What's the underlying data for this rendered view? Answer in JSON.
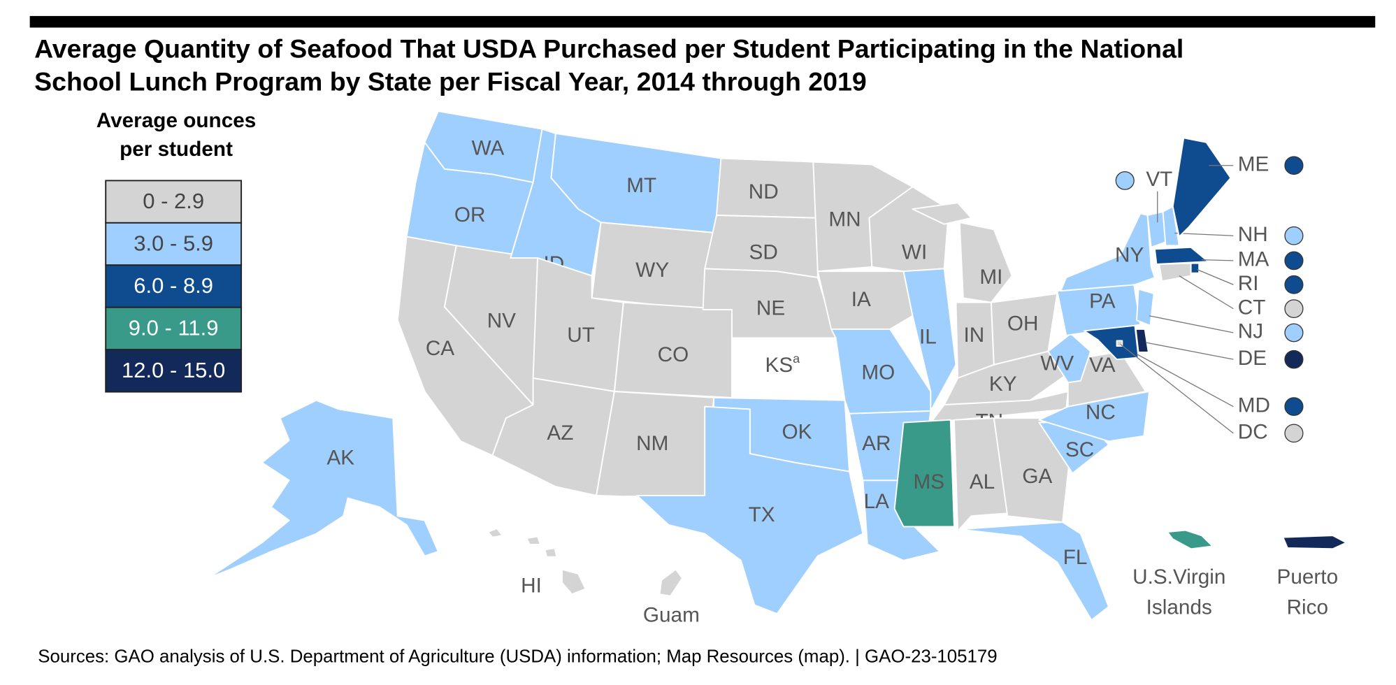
{
  "header": {
    "title_lines": [
      "Average Quantity of Seafood That USDA Purchased per Student Participating in the National",
      "School Lunch Program by State per Fiscal Year, 2014 through 2019"
    ]
  },
  "legend": {
    "title_lines": [
      "Average ounces",
      "per student"
    ],
    "items": [
      {
        "label": "0 - 2.9",
        "color": "#d4d4d4",
        "text_color": "#444444"
      },
      {
        "label": "3.0 - 5.9",
        "color": "#9fcfff",
        "text_color": "#444444"
      },
      {
        "label": "6.0 - 8.9",
        "color": "#0f4c8f",
        "text_color": "#ffffff"
      },
      {
        "label": "9.0 - 11.9",
        "color": "#3a9a8a",
        "text_color": "#ffffff"
      },
      {
        "label": "12.0 - 15.0",
        "color": "#12295a",
        "text_color": "#ffffff"
      }
    ]
  },
  "regions": [
    {
      "label": "WA",
      "color": "#9fcfff"
    },
    {
      "label": "OR",
      "color": "#9fcfff"
    },
    {
      "label": "CA",
      "color": "#d4d4d4"
    },
    {
      "label": "NV",
      "color": "#d4d4d4"
    },
    {
      "label": "ID",
      "color": "#9fcfff"
    },
    {
      "label": "MT",
      "color": "#9fcfff"
    },
    {
      "label": "WY",
      "color": "#d4d4d4"
    },
    {
      "label": "UT",
      "color": "#d4d4d4"
    },
    {
      "label": "CO",
      "color": "#d4d4d4"
    },
    {
      "label": "AZ",
      "color": "#d4d4d4"
    },
    {
      "label": "NM",
      "color": "#d4d4d4"
    },
    {
      "label": "ND",
      "color": "#d4d4d4"
    },
    {
      "label": "SD",
      "color": "#d4d4d4"
    },
    {
      "label": "NE",
      "color": "#d4d4d4"
    },
    {
      "label": "KS",
      "note": "a",
      "color": "#ffffff"
    },
    {
      "label": "OK",
      "color": "#9fcfff"
    },
    {
      "label": "TX",
      "color": "#9fcfff"
    },
    {
      "label": "MN",
      "color": "#d4d4d4"
    },
    {
      "label": "IA",
      "color": "#d4d4d4"
    },
    {
      "label": "MO",
      "color": "#9fcfff"
    },
    {
      "label": "AR",
      "color": "#9fcfff"
    },
    {
      "label": "LA",
      "color": "#9fcfff"
    },
    {
      "label": "WI",
      "color": "#d4d4d4"
    },
    {
      "label": "IL",
      "color": "#9fcfff"
    },
    {
      "label": "MI",
      "color": "#d4d4d4"
    },
    {
      "label": "IN",
      "color": "#d4d4d4"
    },
    {
      "label": "OH",
      "color": "#d4d4d4"
    },
    {
      "label": "KY",
      "color": "#d4d4d4"
    },
    {
      "label": "TN",
      "color": "#d4d4d4"
    },
    {
      "label": "MS",
      "color": "#3a9a8a"
    },
    {
      "label": "AL",
      "color": "#d4d4d4"
    },
    {
      "label": "GA",
      "color": "#d4d4d4"
    },
    {
      "label": "FL",
      "color": "#9fcfff"
    },
    {
      "label": "SC",
      "color": "#9fcfff"
    },
    {
      "label": "NC",
      "color": "#9fcfff"
    },
    {
      "label": "VA",
      "color": "#d4d4d4"
    },
    {
      "label": "WV",
      "color": "#9fcfff"
    },
    {
      "label": "PA",
      "color": "#9fcfff"
    },
    {
      "label": "NY",
      "color": "#9fcfff"
    },
    {
      "label": "VT",
      "color": "#9fcfff"
    },
    {
      "label": "NH",
      "color": "#9fcfff"
    },
    {
      "label": "ME",
      "color": "#0f4c8f"
    },
    {
      "label": "MA",
      "color": "#0f4c8f"
    },
    {
      "label": "RI",
      "color": "#0f4c8f"
    },
    {
      "label": "CT",
      "color": "#d4d4d4"
    },
    {
      "label": "NJ",
      "color": "#9fcfff"
    },
    {
      "label": "DE",
      "color": "#12295a"
    },
    {
      "label": "MD",
      "color": "#0f4c8f"
    },
    {
      "label": "DC",
      "color": "#d4d4d4"
    },
    {
      "label": "AK",
      "color": "#9fcfff"
    },
    {
      "label": "HI",
      "color": "#d4d4d4"
    },
    {
      "label": "Guam",
      "color": "#d4d4d4"
    },
    {
      "label": "U.S.Virgin Islands",
      "color": "#3a9a8a"
    },
    {
      "label": "Puerto Rico",
      "color": "#12295a"
    }
  ],
  "footer": {
    "source": "Sources: GAO analysis of U.S. Department of Agriculture (USDA) information; Map Resources (map).  |  GAO-23-105179"
  }
}
